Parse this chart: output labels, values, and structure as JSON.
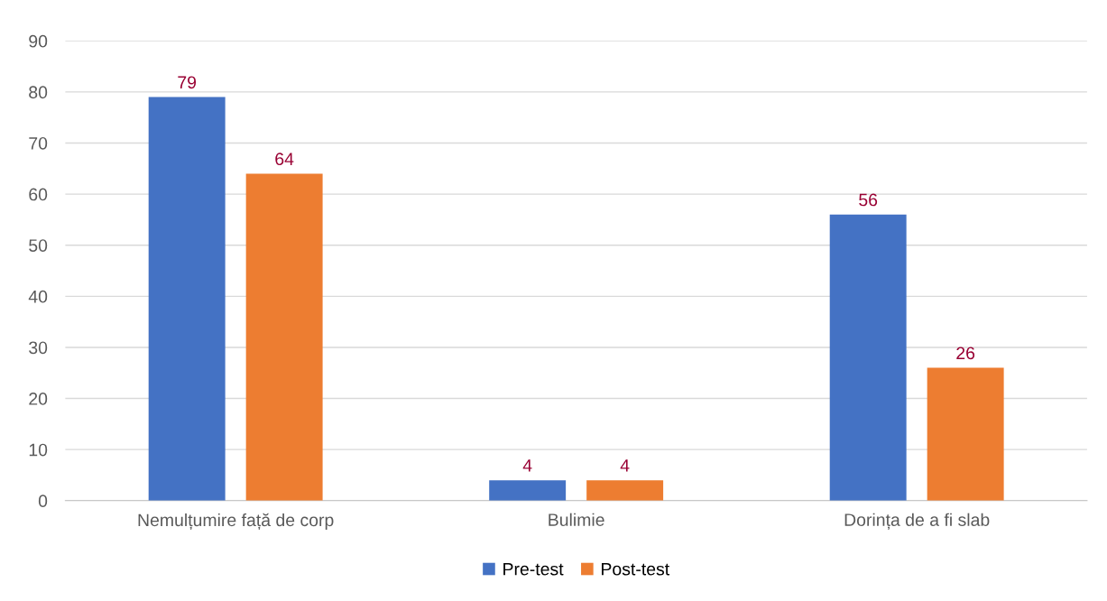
{
  "chart_data": {
    "type": "bar",
    "categories": [
      "Nemulțumire față de corp",
      "Bulimie",
      "Dorința de a fi slab"
    ],
    "series": [
      {
        "name": "Pre-test",
        "color": "#4472c4",
        "values": [
          79,
          4,
          56
        ]
      },
      {
        "name": "Post-test",
        "color": "#ed7d31",
        "values": [
          64,
          4,
          26
        ]
      }
    ],
    "ylim": [
      0,
      90
    ],
    "yticks": [
      0,
      10,
      20,
      30,
      40,
      50,
      60,
      70,
      80,
      90
    ],
    "grid": "y",
    "legend": "bottom",
    "data_labels": true
  }
}
